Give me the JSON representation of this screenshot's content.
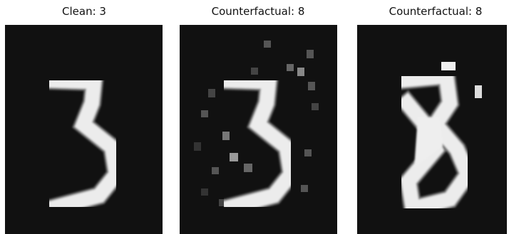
{
  "panels": [
    {
      "title": "Clean: 3"
    },
    {
      "title": "Counterfactual: 8"
    },
    {
      "title": "Counterfactual: 8"
    }
  ]
}
